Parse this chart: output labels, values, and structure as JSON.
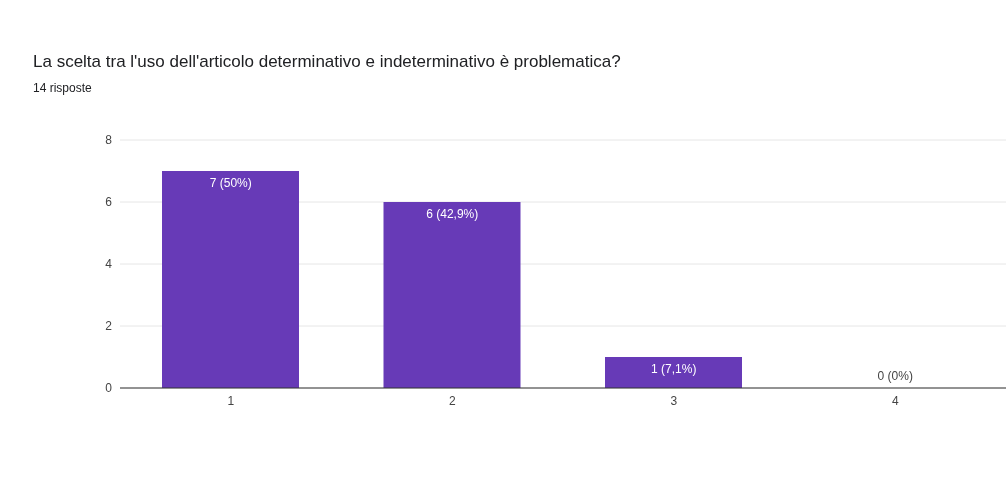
{
  "chart_data": {
    "type": "bar",
    "title": "La scelta tra l'uso dell'articolo determinativo e indeterminativo è problematica?",
    "subtitle": "14 risposte",
    "categories": [
      "1",
      "2",
      "3",
      "4"
    ],
    "values": [
      7,
      6,
      1,
      0
    ],
    "value_labels": [
      "7 (50%)",
      "6 (42,9%)",
      "1 (7,1%)",
      "0 (0%)"
    ],
    "color": "#673ab7",
    "ylim": [
      0,
      8
    ],
    "yticks": [
      0,
      2,
      4,
      6,
      8
    ],
    "grid": "y"
  }
}
